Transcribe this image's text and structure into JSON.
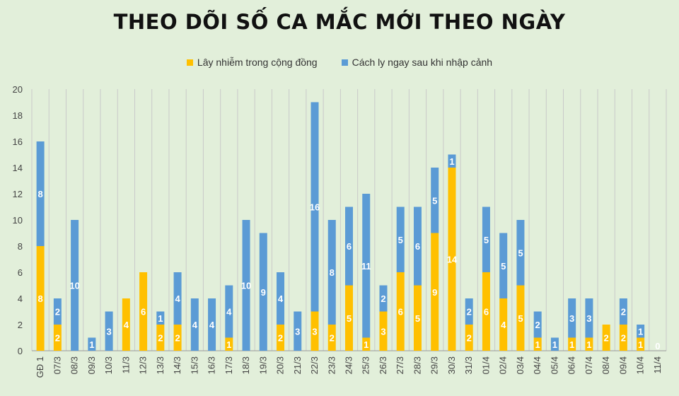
{
  "title": "THEO DÕI SỐ CA MẮC MỚI THEO NGÀY",
  "colors": {
    "background": "#e2efda",
    "community": "#ffc000",
    "quarantine": "#5b9bd5",
    "grid": "#c9c9c9"
  },
  "chart_data": {
    "type": "bar",
    "stacked": true,
    "title": "THEO DÕI SỐ CA MẮC MỚI THEO NGÀY",
    "xlabel": "",
    "ylabel": "",
    "ylim": [
      0,
      20
    ],
    "yticks": [
      0,
      2,
      4,
      6,
      8,
      10,
      12,
      14,
      16,
      18,
      20
    ],
    "grid": "vertical",
    "legend_position": "top",
    "categories": [
      "GĐ 1",
      "07/3",
      "08/3",
      "09/3",
      "10/3",
      "11/3",
      "12/3",
      "13/3",
      "14/3",
      "15/3",
      "16/3",
      "17/3",
      "18/3",
      "19/3",
      "20/3",
      "21/3",
      "22/3",
      "23/3",
      "24/3",
      "25/3",
      "26/3",
      "27/3",
      "28/3",
      "29/3",
      "30/3",
      "31/3",
      "01/4",
      "02/4",
      "03/4",
      "04/4",
      "05/4",
      "06/4",
      "07/4",
      "08/4",
      "09/4",
      "10/4",
      "11/4"
    ],
    "series": [
      {
        "name": "Lây nhiễm trong cộng đồng",
        "values": [
          8,
          2,
          0,
          0,
          0,
          4,
          6,
          2,
          2,
          0,
          0,
          1,
          0,
          0,
          2,
          0,
          3,
          2,
          5,
          1,
          3,
          6,
          5,
          9,
          14,
          2,
          6,
          4,
          5,
          1,
          0,
          1,
          1,
          2,
          2,
          1,
          0
        ]
      },
      {
        "name": "Cách ly ngay sau khi nhập cảnh",
        "values": [
          8,
          2,
          10,
          1,
          3,
          0,
          0,
          1,
          4,
          4,
          4,
          4,
          10,
          9,
          4,
          3,
          16,
          8,
          6,
          11,
          2,
          5,
          6,
          5,
          1,
          2,
          5,
          5,
          5,
          2,
          1,
          3,
          3,
          0,
          2,
          1,
          0
        ]
      }
    ],
    "zero_labels": [
      "0"
    ]
  }
}
